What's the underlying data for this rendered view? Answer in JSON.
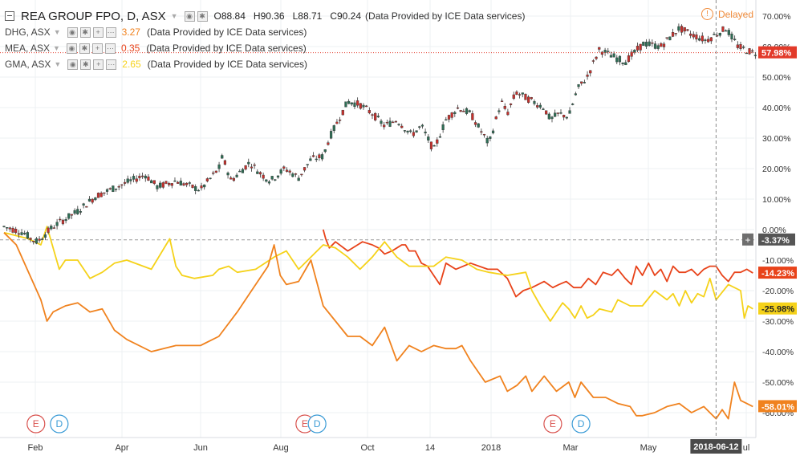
{
  "window": {
    "delayed_label": "Delayed",
    "warning_icon": "warning-icon"
  },
  "legend": {
    "main": {
      "title": "REA GROUP FPO, D, ASX",
      "o_label": "O",
      "o": "88.84",
      "h_label": "H",
      "h": "90.36",
      "l_label": "L",
      "l": "88.71",
      "c_label": "C",
      "c": "90.24",
      "source": "(Data Provided by ICE Data services)"
    },
    "compares": [
      {
        "symbol": "DHG, ASX",
        "value": "3.27",
        "color": "#f0821e",
        "source": "(Data Provided by ICE Data services)"
      },
      {
        "symbol": "MEA, ASX",
        "value": "0.35",
        "color": "#e8431a",
        "source": "(Data Provided by ICE Data services)"
      },
      {
        "symbol": "GMA, ASX",
        "value": "2.65",
        "color": "#f5d21a",
        "source": "(Data Provided by ICE Data services)"
      }
    ]
  },
  "chart_data": {
    "type": "line",
    "title": "REA GROUP FPO, D, ASX",
    "y_axis": {
      "unit": "%",
      "range": [
        -66,
        72
      ],
      "ticks": [
        "70.00%",
        "60.00%",
        "50.00%",
        "40.00%",
        "30.00%",
        "20.00%",
        "10.00%",
        "0.00%",
        "-10.00%",
        "-20.00%",
        "-30.00%",
        "-40.00%",
        "-50.00%",
        "-60.00%"
      ]
    },
    "x_axis": {
      "ticks": [
        "Feb",
        "Apr",
        "Jun",
        "Aug",
        "Oct",
        "14",
        "2018",
        "Mar",
        "May",
        "ul"
      ],
      "crosshair_label": "2018-06-12"
    },
    "grid": true,
    "zero_baseline_label": "-3.37%",
    "last_value_labels": [
      {
        "series": "REA",
        "text": "57.98%",
        "value": 57.98,
        "color": "#e23a2a"
      },
      {
        "series": "MEA",
        "text": "-14.23%",
        "value": -14.23,
        "color": "#e8431a"
      },
      {
        "series": "GMA",
        "text": "-25.98%",
        "value": -25.98,
        "color": "#f5d21a"
      },
      {
        "series": "DHG",
        "text": "-58.01%",
        "value": -58.01,
        "color": "#f0821e"
      }
    ],
    "series": [
      {
        "name": "REA",
        "style": "candles",
        "color_up": "#2e6e55",
        "color_down": "#c9302c",
        "x": [
          0,
          16,
          22,
          27,
          40,
          60,
          75,
          92,
          115,
          125,
          140,
          160,
          175,
          178,
          185,
          200,
          210,
          217,
          229,
          240,
          250,
          260,
          265,
          270,
          280,
          290,
          300,
          310,
          320,
          332,
          340,
          350,
          360,
          370,
          380,
          395,
          405,
          410,
          417,
          440,
          445,
          452,
          460,
          467,
          475,
          485,
          500,
          506,
          521,
          535,
          550,
          560,
          572,
          588,
          598,
          610
        ],
        "y": [
          1,
          -1,
          -3,
          -4,
          1,
          6,
          11,
          14,
          18,
          14,
          16,
          13,
          20,
          24,
          16,
          22,
          18,
          16,
          20,
          17,
          23,
          24,
          30,
          34,
          42,
          41,
          38,
          34,
          36,
          31,
          34,
          26,
          36,
          40,
          38,
          28,
          42,
          38,
          45,
          40,
          36,
          38,
          37,
          46,
          50,
          59,
          56,
          55,
          61,
          60,
          66,
          64,
          62,
          66,
          60,
          57.98
        ]
      },
      {
        "name": "MEA",
        "style": "line",
        "color": "#e8431a",
        "x": [
          260,
          262,
          265,
          270,
          280,
          288,
          292,
          300,
          305,
          310,
          316,
          320,
          324,
          327,
          330,
          335,
          340,
          345,
          350,
          355,
          360,
          368,
          380,
          394,
          402,
          410,
          417,
          423,
          430,
          440,
          447,
          452,
          458,
          464,
          470,
          476,
          482,
          488,
          495,
          500,
          506,
          511,
          515,
          520,
          525,
          530,
          535,
          540,
          545,
          550,
          555,
          560,
          565,
          570,
          575,
          580,
          585,
          590,
          595,
          600,
          605,
          610
        ],
        "y": [
          0,
          -3,
          -6,
          -4,
          -7,
          -5,
          -4,
          -5,
          -6,
          -8,
          -7,
          -6,
          -5,
          -5,
          -7,
          -7,
          -11,
          -12,
          -15,
          -18,
          -11,
          -13,
          -11,
          -13,
          -13,
          -16,
          -22,
          -20,
          -19,
          -17,
          -19,
          -18,
          -17,
          -19,
          -19,
          -16,
          -18,
          -14,
          -15,
          -13,
          -16,
          -18,
          -12,
          -15,
          -11,
          -15,
          -13,
          -17,
          -12,
          -14,
          -14,
          -13,
          -15,
          -13,
          -12,
          -12,
          -15,
          -17,
          -14,
          -14,
          -13,
          -14.23
        ]
      },
      {
        "name": "GMA",
        "style": "line",
        "color": "#f5d21a",
        "x": [
          0,
          20,
          30,
          35,
          45,
          50,
          60,
          70,
          80,
          90,
          100,
          120,
          135,
          140,
          145,
          155,
          170,
          175,
          183,
          190,
          205,
          220,
          230,
          240,
          260,
          270,
          280,
          290,
          300,
          310,
          320,
          330,
          350,
          360,
          373,
          385,
          395,
          410,
          425,
          430,
          437,
          445,
          455,
          460,
          465,
          470,
          475,
          480,
          485,
          495,
          500,
          510,
          520,
          530,
          540,
          545,
          550,
          555,
          560,
          565,
          570,
          575,
          580,
          590,
          600,
          603,
          606,
          610
        ],
        "y": [
          -1,
          -3,
          -5,
          1,
          -13,
          -10,
          -10,
          -16,
          -14,
          -11,
          -10,
          -13,
          -3,
          -12,
          -15,
          -16,
          -15,
          -13,
          -12,
          -14,
          -13,
          -9,
          -7,
          -13,
          -5,
          -6,
          -9,
          -13,
          -9,
          -4,
          -9,
          -12,
          -12,
          -9,
          -10,
          -13,
          -14,
          -15,
          -14,
          -20,
          -25,
          -30,
          -24,
          -26,
          -29,
          -25,
          -29,
          -28,
          -26,
          -27,
          -23,
          -25,
          -25,
          -20,
          -23,
          -21,
          -25,
          -20,
          -24,
          -21,
          -22,
          -16,
          -23,
          -18,
          -20,
          -29,
          -25,
          -25.98
        ]
      },
      {
        "name": "DHG",
        "style": "line",
        "color": "#f0821e",
        "x": [
          0,
          10,
          20,
          30,
          35,
          40,
          50,
          60,
          70,
          80,
          90,
          100,
          120,
          140,
          160,
          175,
          190,
          200,
          215,
          220,
          225,
          230,
          240,
          250,
          260,
          270,
          280,
          290,
          300,
          310,
          320,
          330,
          340,
          350,
          360,
          368,
          373,
          380,
          392,
          404,
          410,
          418,
          425,
          430,
          440,
          450,
          460,
          465,
          470,
          480,
          490,
          500,
          510,
          515,
          520,
          530,
          540,
          550,
          560,
          570,
          580,
          585,
          590,
          595,
          600,
          605,
          610
        ],
        "y": [
          -1,
          -5,
          -14,
          -23,
          -30,
          -27,
          -25,
          -24,
          -27,
          -26,
          -33,
          -36,
          -40,
          -38,
          -38,
          -35,
          -27,
          -21,
          -12,
          -5,
          -15,
          -18,
          -17,
          -10,
          -25,
          -30,
          -35,
          -35,
          -38,
          -32,
          -43,
          -38,
          -40,
          -38,
          -39,
          -39,
          -38,
          -43,
          -50,
          -48,
          -53,
          -51,
          -48,
          -53,
          -48,
          -53,
          -50,
          -55,
          -50,
          -55,
          -55,
          -57,
          -58,
          -61,
          -61,
          -60,
          -58,
          -57,
          -60,
          -58,
          -62,
          -59,
          -62,
          -50,
          -56,
          -57,
          -58.01
        ]
      }
    ],
    "events": [
      {
        "label": "E",
        "color": "#d9534f",
        "x": 26
      },
      {
        "label": "D",
        "color": "#3a9bd6",
        "x": 45
      },
      {
        "label": "E",
        "color": "#d9534f",
        "x": 245
      },
      {
        "label": "D",
        "color": "#3a9bd6",
        "x": 255
      },
      {
        "label": "E",
        "color": "#d9534f",
        "x": 447
      },
      {
        "label": "D",
        "color": "#3a9bd6",
        "x": 470
      }
    ],
    "crosshair_x": 580
  }
}
